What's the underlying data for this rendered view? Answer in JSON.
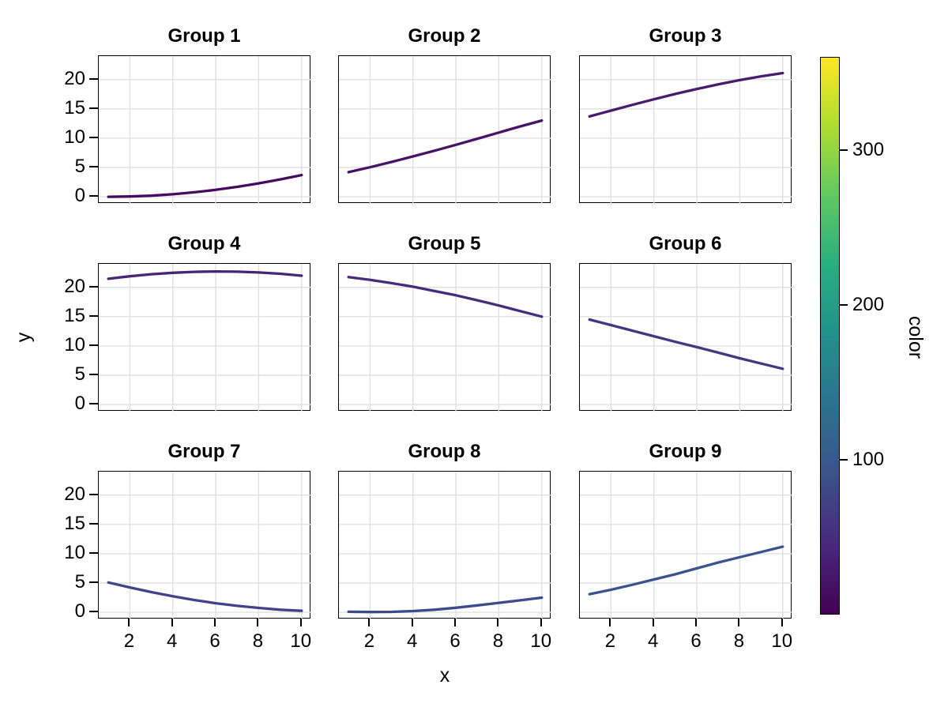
{
  "figure": {
    "background": "#ffffff",
    "text_color": "#000000",
    "spine_color": "#000000"
  },
  "chart_data": {
    "type": "line",
    "facet_grid": "3x3",
    "title": "",
    "xlabel": "x",
    "ylabel": "y",
    "x": [
      1,
      2,
      3,
      4,
      5,
      6,
      7,
      8,
      9,
      10
    ],
    "xticks": [
      2,
      4,
      6,
      8,
      10
    ],
    "yticks": [
      0,
      5,
      10,
      15,
      20
    ],
    "xlim": [
      0.55,
      10.45
    ],
    "ylim": [
      -1.2,
      24.0
    ],
    "grid": true,
    "gridline_color": "#e0e0e0",
    "facets": [
      {
        "title": "Group 1",
        "line_color": "#460b5e",
        "y": [
          0.0,
          0.05,
          0.19,
          0.43,
          0.77,
          1.19,
          1.7,
          2.29,
          2.96,
          3.7
        ]
      },
      {
        "title": "Group 2",
        "line_color": "#471366",
        "y": [
          4.2,
          5.04,
          5.94,
          6.88,
          7.86,
          8.87,
          9.9,
          10.95,
          12.0,
          13.0
        ]
      },
      {
        "title": "Group 3",
        "line_color": "#481b6d",
        "y": [
          13.7,
          14.7,
          15.68,
          16.63,
          17.54,
          18.39,
          19.18,
          19.9,
          20.55,
          21.1
        ]
      },
      {
        "title": "Group 4",
        "line_color": "#482475",
        "y": [
          21.45,
          21.88,
          22.23,
          22.48,
          22.64,
          22.7,
          22.66,
          22.53,
          22.31,
          21.98
        ]
      },
      {
        "title": "Group 5",
        "line_color": "#462c7c",
        "y": [
          21.75,
          21.28,
          20.71,
          20.1,
          19.37,
          18.63,
          17.79,
          16.9,
          15.94,
          15.0
        ]
      },
      {
        "title": "Group 6",
        "line_color": "#443781",
        "y": [
          14.5,
          13.55,
          12.6,
          11.65,
          10.7,
          9.8,
          8.85,
          7.9,
          7.0,
          6.1
        ]
      },
      {
        "title": "Group 7",
        "line_color": "#414287",
        "y": [
          5.1,
          4.25,
          3.45,
          2.75,
          2.1,
          1.55,
          1.1,
          0.75,
          0.45,
          0.25
        ]
      },
      {
        "title": "Group 8",
        "line_color": "#3d4b8a",
        "y": [
          0.1,
          0.05,
          0.08,
          0.22,
          0.45,
          0.78,
          1.18,
          1.62,
          2.05,
          2.5
        ]
      },
      {
        "title": "Group 9",
        "line_color": "#39548c",
        "y": [
          3.1,
          3.85,
          4.7,
          5.6,
          6.5,
          7.5,
          8.5,
          9.4,
          10.3,
          11.2
        ]
      }
    ],
    "colorbar": {
      "label": "color",
      "ticks": [
        100,
        200,
        300
      ],
      "range": [
        0,
        360
      ],
      "colormap": "viridis",
      "gradient_stops_bottom_to_top": [
        "#440154",
        "#48287d",
        "#3b528b",
        "#2c728e",
        "#21918c",
        "#28ae80",
        "#5ec962",
        "#addc30",
        "#fde725"
      ]
    }
  }
}
